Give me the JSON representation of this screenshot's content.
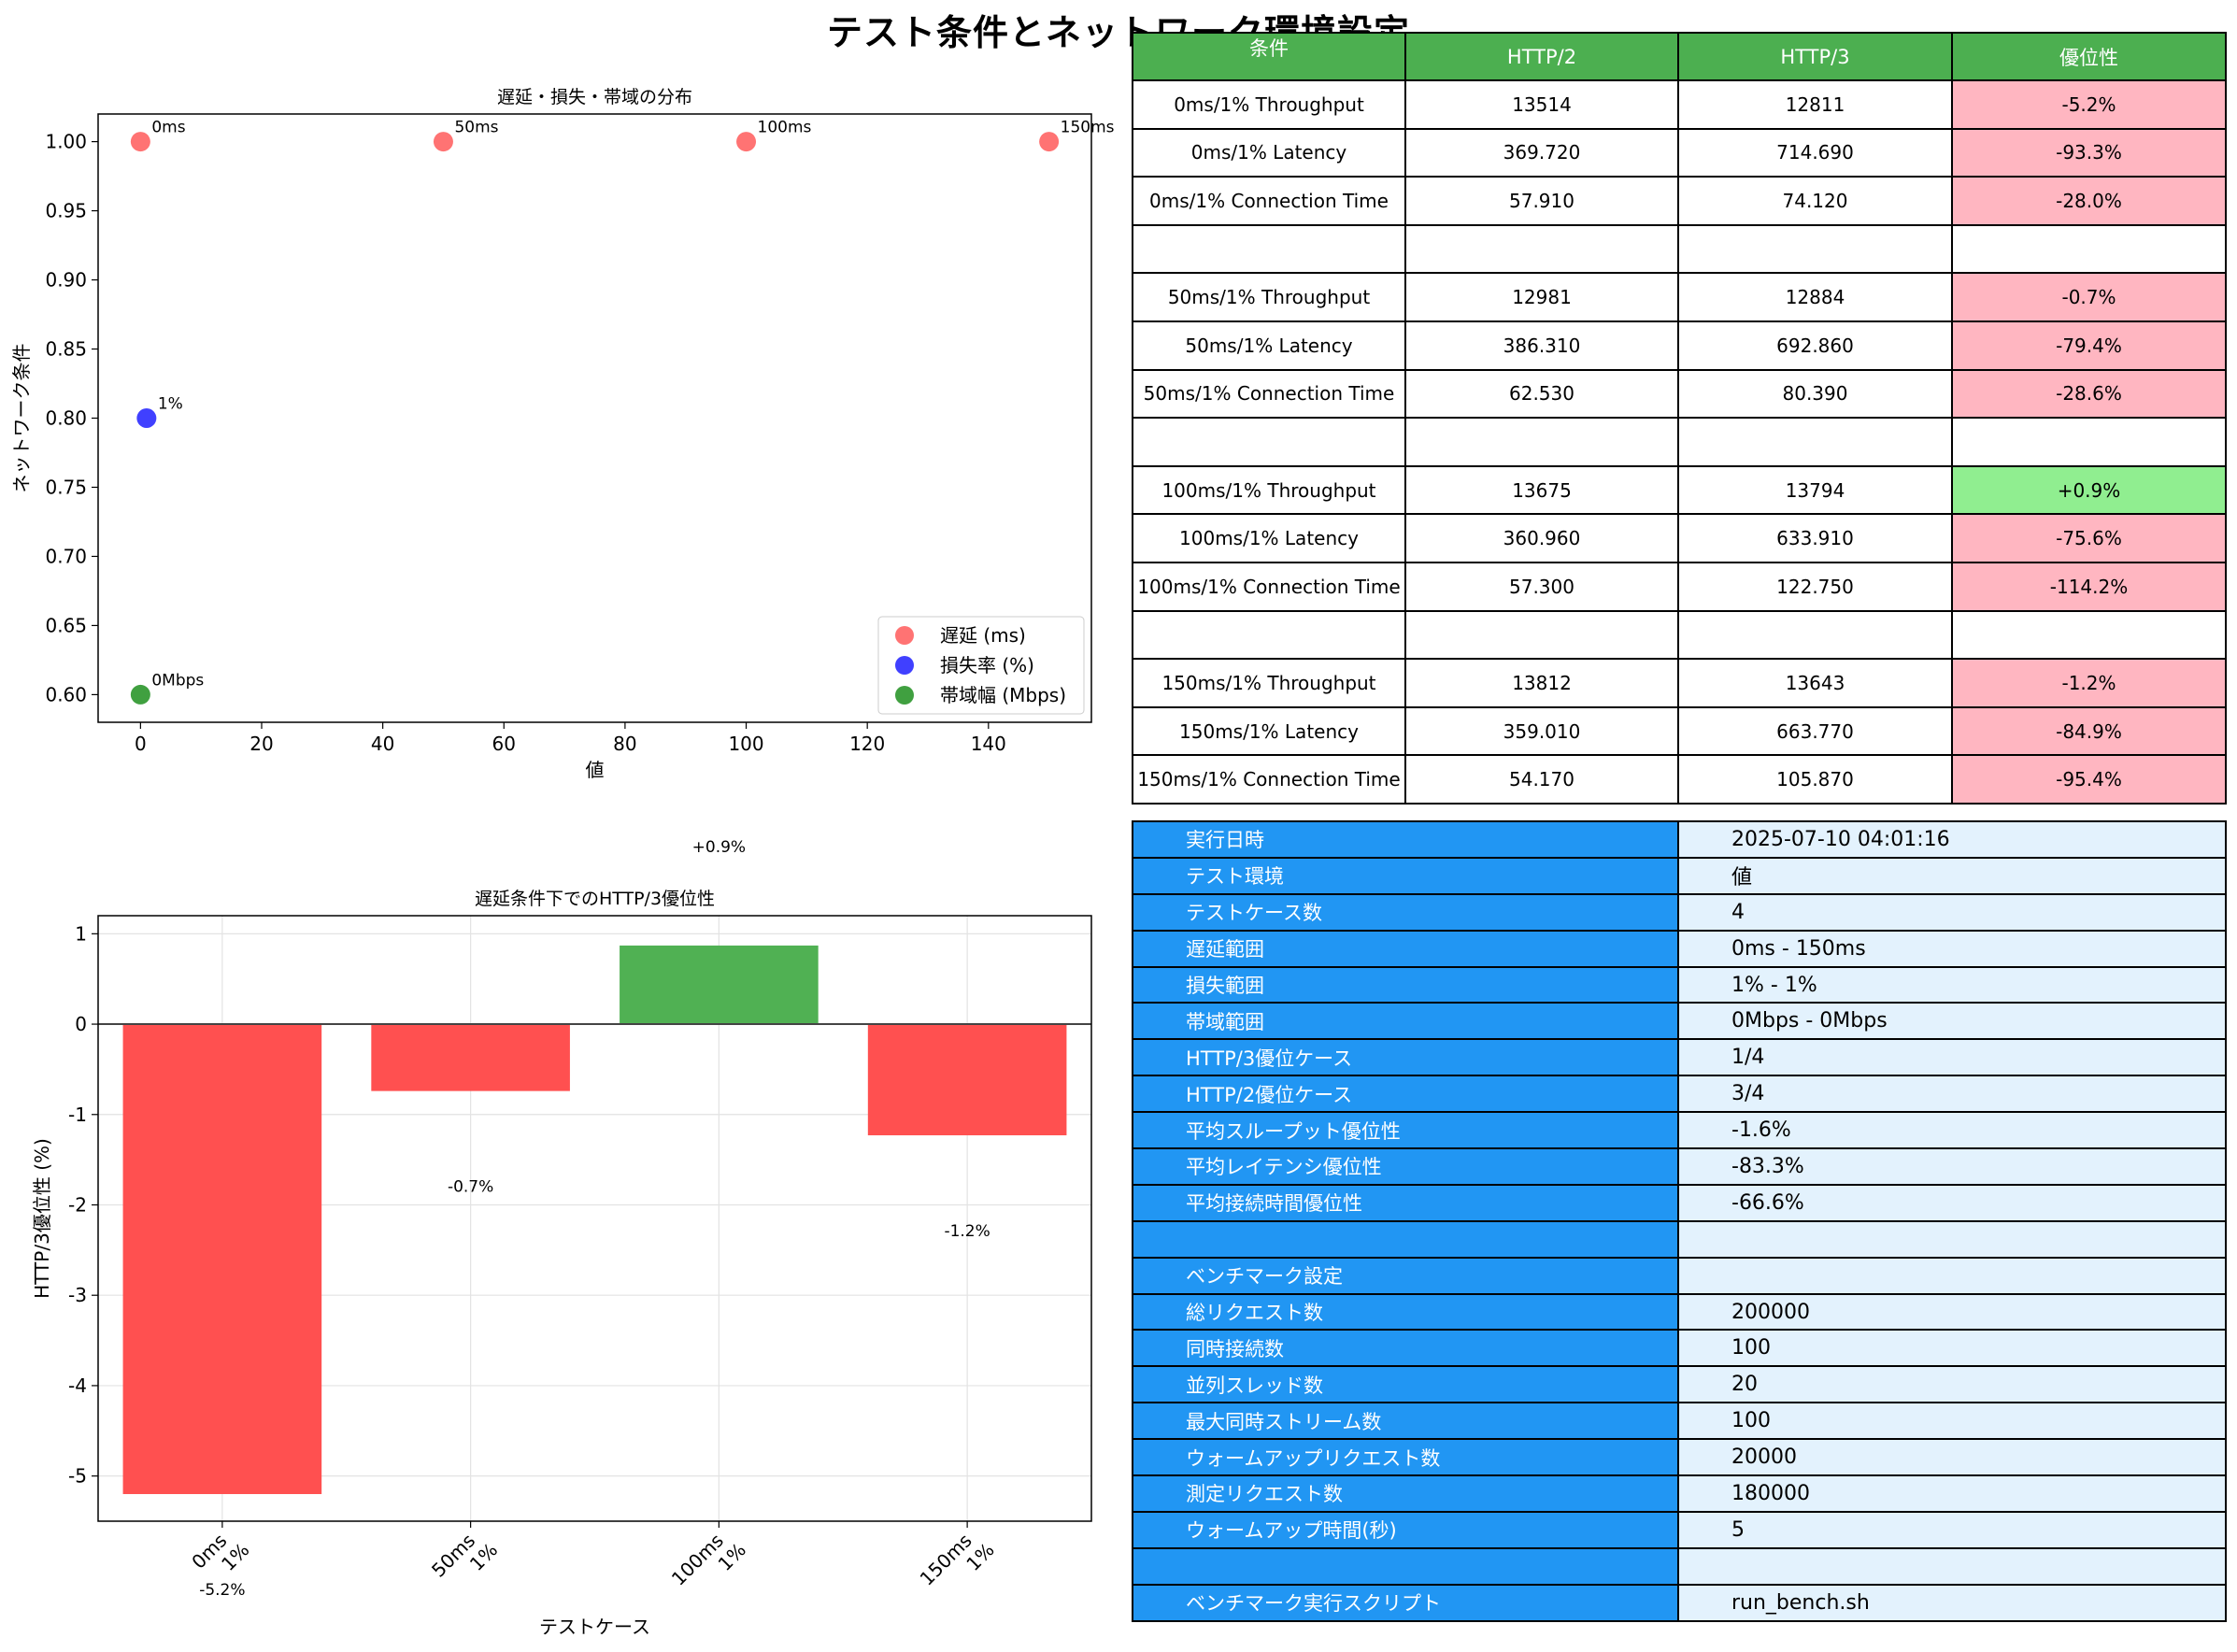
{
  "page_title": "テスト条件とネットワーク環境設定",
  "chart_data": [
    {
      "type": "scatter",
      "title": "遅延・損失・帯域の分布",
      "xlabel": "値",
      "ylabel": "ネットワーク条件",
      "xlim": [
        -7,
        157
      ],
      "ylim": [
        0.58,
        1.02
      ],
      "xticks": [
        "0",
        "20",
        "40",
        "60",
        "80",
        "100",
        "120",
        "140"
      ],
      "yticks": [
        "0.60",
        "0.65",
        "0.70",
        "0.75",
        "0.80",
        "0.85",
        "0.90",
        "0.95",
        "1.00"
      ],
      "grid": false,
      "legend_position": "lower-right",
      "series": [
        {
          "name": "遅延 (ms)",
          "color": "#ff4444",
          "points": [
            {
              "x": 0,
              "y": 1.0,
              "label": "0ms"
            },
            {
              "x": 50,
              "y": 1.0,
              "label": "50ms"
            },
            {
              "x": 100,
              "y": 1.0,
              "label": "100ms"
            },
            {
              "x": 150,
              "y": 1.0,
              "label": "150ms"
            }
          ]
        },
        {
          "name": "損失率 (%)",
          "color": "#0000ff",
          "points": [
            {
              "x": 1,
              "y": 0.8,
              "label": "1%"
            }
          ]
        },
        {
          "name": "帯域幅 (Mbps)",
          "color": "#008000",
          "points": [
            {
              "x": 0,
              "y": 0.6,
              "label": "0Mbps"
            }
          ]
        }
      ]
    },
    {
      "type": "bar",
      "title": "遅延条件下でのHTTP/3優位性",
      "xlabel": "テストケース",
      "ylabel": "HTTP/3優位性 (%)",
      "ylim": [
        -5.5,
        1.2
      ],
      "yticks": [
        "1",
        "0",
        "-1",
        "-2",
        "-3",
        "-4",
        "-5"
      ],
      "grid": true,
      "categories": [
        [
          "0ms",
          "1%"
        ],
        [
          "50ms",
          "1%"
        ],
        [
          "100ms",
          "1%"
        ],
        [
          "150ms",
          "1%"
        ]
      ],
      "values": [
        -5.2,
        -0.74,
        0.87,
        -1.23
      ],
      "data_labels": [
        "-5.2%",
        "-0.7%",
        "+0.9%",
        "-1.2%"
      ],
      "colors": {
        "positive": "#4caf50",
        "negative": "#ff4c4c"
      }
    }
  ],
  "comparison_table": {
    "headers": [
      "条件",
      "HTTP/2",
      "HTTP/3",
      "優位性"
    ],
    "rows": [
      [
        "0ms/1% Throughput",
        "13514",
        "12811",
        "-5.2%"
      ],
      [
        "0ms/1% Latency",
        "369.720",
        "714.690",
        "-93.3%"
      ],
      [
        "0ms/1% Connection Time",
        "57.910",
        "74.120",
        "-28.0%"
      ],
      [
        "",
        "",
        "",
        ""
      ],
      [
        "50ms/1% Throughput",
        "12981",
        "12884",
        "-0.7%"
      ],
      [
        "50ms/1% Latency",
        "386.310",
        "692.860",
        "-79.4%"
      ],
      [
        "50ms/1% Connection Time",
        "62.530",
        "80.390",
        "-28.6%"
      ],
      [
        "",
        "",
        "",
        ""
      ],
      [
        "100ms/1% Throughput",
        "13675",
        "13794",
        "+0.9%"
      ],
      [
        "100ms/1% Latency",
        "360.960",
        "633.910",
        "-75.6%"
      ],
      [
        "100ms/1% Connection Time",
        "57.300",
        "122.750",
        "-114.2%"
      ],
      [
        "",
        "",
        "",
        ""
      ],
      [
        "150ms/1% Throughput",
        "13812",
        "13643",
        "-1.2%"
      ],
      [
        "150ms/1% Latency",
        "359.010",
        "663.770",
        "-84.9%"
      ],
      [
        "150ms/1% Connection Time",
        "54.170",
        "105.870",
        "-95.4%"
      ]
    ]
  },
  "environment_table": {
    "rows": [
      [
        "実行日時",
        "2025-07-10 04:01:16"
      ],
      [
        "テスト環境",
        "値"
      ],
      [
        "テストケース数",
        "4"
      ],
      [
        "遅延範囲",
        "0ms - 150ms"
      ],
      [
        "損失範囲",
        "1% - 1%"
      ],
      [
        "帯域範囲",
        "0Mbps - 0Mbps"
      ],
      [
        "HTTP/3優位ケース",
        "1/4"
      ],
      [
        "HTTP/2優位ケース",
        "3/4"
      ],
      [
        "平均スループット優位性",
        "-1.6%"
      ],
      [
        "平均レイテンシ優位性",
        "-83.3%"
      ],
      [
        "平均接続時間優位性",
        "-66.6%"
      ],
      [
        "",
        ""
      ],
      [
        "ベンチマーク設定",
        ""
      ],
      [
        "総リクエスト数",
        "200000"
      ],
      [
        "同時接続数",
        "100"
      ],
      [
        "並列スレッド数",
        "20"
      ],
      [
        "最大同時ストリーム数",
        "100"
      ],
      [
        "ウォームアップリクエスト数",
        "20000"
      ],
      [
        "測定リクエスト数",
        "180000"
      ],
      [
        "ウォームアップ時間(秒)",
        "5"
      ],
      [
        "",
        ""
      ],
      [
        "ベンチマーク実行スクリプト",
        "run_bench.sh"
      ]
    ]
  }
}
